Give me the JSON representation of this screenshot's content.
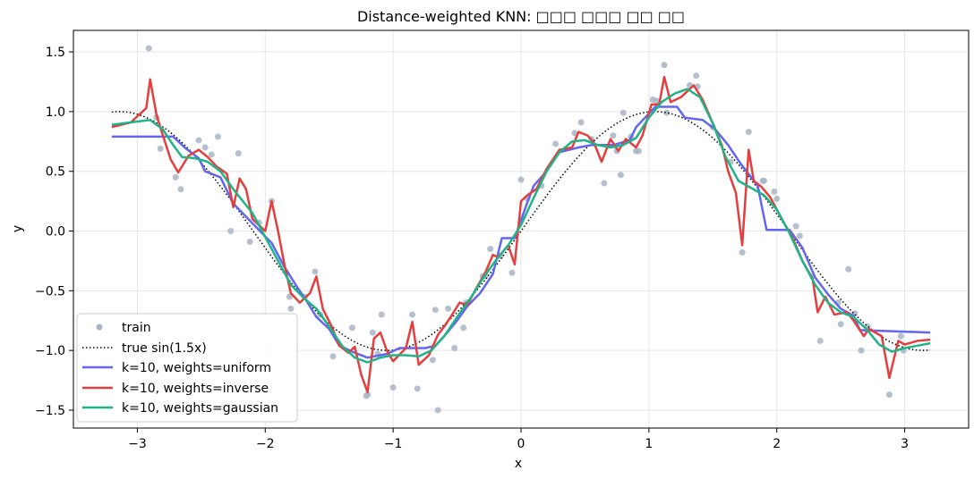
{
  "chart_data": {
    "type": "line",
    "title": "Distance-weighted KNN: □□□ □□□ □□ □□",
    "xlabel": "x",
    "ylabel": "y",
    "xlim": [
      -3.5,
      3.5
    ],
    "ylim": [
      -1.65,
      1.68
    ],
    "xticks": [
      -3,
      -2,
      -1,
      0,
      1,
      2,
      3
    ],
    "xtick_labels": [
      "−3",
      "−2",
      "−1",
      "0",
      "1",
      "2",
      "3"
    ],
    "yticks": [
      -1.5,
      -1.0,
      -0.5,
      0.0,
      0.5,
      1.0,
      1.5
    ],
    "ytick_labels": [
      "−1.5",
      "−1.0",
      "−0.5",
      "0.0",
      "0.5",
      "1.0",
      "1.5"
    ],
    "grid": true,
    "legend_position": "lower-left",
    "legend": {
      "train": "train",
      "truth": "true sin(1.5x)",
      "uniform": "k=10, weights=uniform",
      "inverse": "k=10, weights=inverse",
      "gaussian": "k=10, weights=gaussian"
    },
    "colors": {
      "train": "#a9b4c6",
      "truth": "#000000",
      "uniform": "#6366f1",
      "inverse": "#e53e3e",
      "gaussian": "#1fb488",
      "grid": "#e6e6e6"
    },
    "train_points": [
      [
        -2.91,
        1.53
      ],
      [
        -2.85,
        0.95
      ],
      [
        -2.82,
        0.69
      ],
      [
        -2.7,
        0.45
      ],
      [
        -2.66,
        0.35
      ],
      [
        -2.52,
        0.76
      ],
      [
        -2.47,
        0.7
      ],
      [
        -2.42,
        0.64
      ],
      [
        -2.37,
        0.79
      ],
      [
        -2.27,
        0.0
      ],
      [
        -2.21,
        0.65
      ],
      [
        -2.12,
        -0.09
      ],
      [
        -2.05,
        0.07
      ],
      [
        -1.95,
        0.25
      ],
      [
        -1.81,
        -0.55
      ],
      [
        -1.8,
        -0.65
      ],
      [
        -1.69,
        -0.55
      ],
      [
        -1.61,
        -0.34
      ],
      [
        -1.57,
        -0.7
      ],
      [
        -1.47,
        -1.05
      ],
      [
        -1.32,
        -0.81
      ],
      [
        -1.21,
        -1.38
      ],
      [
        -1.2,
        -1.37
      ],
      [
        -1.16,
        -0.85
      ],
      [
        -1.12,
        -1.03
      ],
      [
        -1.09,
        -0.7
      ],
      [
        -1.0,
        -1.31
      ],
      [
        -0.85,
        -0.7
      ],
      [
        -0.81,
        -1.32
      ],
      [
        -0.69,
        -1.08
      ],
      [
        -0.67,
        -0.66
      ],
      [
        -0.65,
        -1.5
      ],
      [
        -0.57,
        -0.65
      ],
      [
        -0.52,
        -0.98
      ],
      [
        -0.45,
        -0.81
      ],
      [
        -0.43,
        -0.6
      ],
      [
        -0.3,
        -0.38
      ],
      [
        -0.28,
        -0.38
      ],
      [
        -0.24,
        -0.15
      ],
      [
        -0.16,
        -0.21
      ],
      [
        -0.07,
        -0.35
      ],
      [
        0.0,
        0.43
      ],
      [
        0.05,
        0.27
      ],
      [
        0.16,
        0.38
      ],
      [
        0.27,
        0.73
      ],
      [
        0.42,
        0.82
      ],
      [
        0.47,
        0.91
      ],
      [
        0.55,
        0.77
      ],
      [
        0.65,
        0.4
      ],
      [
        0.72,
        0.8
      ],
      [
        0.75,
        0.67
      ],
      [
        0.78,
        0.47
      ],
      [
        0.8,
        0.99
      ],
      [
        0.86,
        0.79
      ],
      [
        0.9,
        0.67
      ],
      [
        0.92,
        0.67
      ],
      [
        1.03,
        1.1
      ],
      [
        1.06,
        1.09
      ],
      [
        1.12,
        1.39
      ],
      [
        1.14,
        0.99
      ],
      [
        1.32,
        1.22
      ],
      [
        1.37,
        1.3
      ],
      [
        1.38,
        1.21
      ],
      [
        1.5,
        0.87
      ],
      [
        1.64,
        0.58
      ],
      [
        1.73,
        -0.18
      ],
      [
        1.78,
        0.83
      ],
      [
        1.89,
        0.42
      ],
      [
        1.9,
        0.42
      ],
      [
        1.98,
        0.33
      ],
      [
        2.0,
        0.27
      ],
      [
        2.15,
        0.04
      ],
      [
        2.18,
        -0.04
      ],
      [
        2.28,
        -0.38
      ],
      [
        2.34,
        -0.92
      ],
      [
        2.48,
        -0.6
      ],
      [
        2.5,
        -0.78
      ],
      [
        2.56,
        -0.32
      ],
      [
        2.61,
        -0.69
      ],
      [
        2.66,
        -1.0
      ],
      [
        2.71,
        -0.8
      ],
      [
        2.88,
        -1.37
      ],
      [
        2.97,
        -0.88
      ],
      [
        2.99,
        -1.0
      ]
    ],
    "uniform_curve": [
      [
        -3.2,
        0.79
      ],
      [
        -2.72,
        0.79
      ],
      [
        -2.62,
        0.69
      ],
      [
        -2.52,
        0.61
      ],
      [
        -2.47,
        0.5
      ],
      [
        -2.35,
        0.45
      ],
      [
        -2.25,
        0.23
      ],
      [
        -2.15,
        0.12
      ],
      [
        -2.05,
        0.01
      ],
      [
        -1.95,
        -0.1
      ],
      [
        -1.85,
        -0.3
      ],
      [
        -1.75,
        -0.47
      ],
      [
        -1.68,
        -0.58
      ],
      [
        -1.6,
        -0.72
      ],
      [
        -1.5,
        -0.82
      ],
      [
        -1.42,
        -0.96
      ],
      [
        -1.3,
        -1.02
      ],
      [
        -1.2,
        -1.06
      ],
      [
        -1.05,
        -1.03
      ],
      [
        -0.95,
        -0.98
      ],
      [
        -0.75,
        -0.98
      ],
      [
        -0.67,
        -0.96
      ],
      [
        -0.6,
        -0.88
      ],
      [
        -0.5,
        -0.75
      ],
      [
        -0.42,
        -0.63
      ],
      [
        -0.32,
        -0.52
      ],
      [
        -0.22,
        -0.36
      ],
      [
        -0.15,
        -0.06
      ],
      [
        -0.05,
        -0.06
      ],
      [
        0.05,
        0.24
      ],
      [
        0.1,
        0.38
      ],
      [
        0.2,
        0.5
      ],
      [
        0.3,
        0.66
      ],
      [
        0.45,
        0.7
      ],
      [
        0.55,
        0.72
      ],
      [
        0.72,
        0.72
      ],
      [
        0.85,
        0.76
      ],
      [
        0.9,
        0.87
      ],
      [
        1.05,
        1.04
      ],
      [
        1.1,
        1.04
      ],
      [
        1.22,
        1.04
      ],
      [
        1.28,
        0.95
      ],
      [
        1.42,
        0.93
      ],
      [
        1.52,
        0.85
      ],
      [
        1.62,
        0.72
      ],
      [
        1.72,
        0.56
      ],
      [
        1.85,
        0.38
      ],
      [
        1.92,
        0.01
      ],
      [
        2.1,
        0.01
      ],
      [
        2.2,
        -0.14
      ],
      [
        2.3,
        -0.39
      ],
      [
        2.4,
        -0.53
      ],
      [
        2.5,
        -0.65
      ],
      [
        2.6,
        -0.71
      ],
      [
        2.65,
        -0.83
      ],
      [
        3.2,
        -0.85
      ]
    ],
    "inverse_curve": [
      [
        -3.2,
        0.87
      ],
      [
        -3.05,
        0.91
      ],
      [
        -2.98,
        0.98
      ],
      [
        -2.93,
        1.03
      ],
      [
        -2.9,
        1.27
      ],
      [
        -2.85,
        0.97
      ],
      [
        -2.8,
        0.8
      ],
      [
        -2.74,
        0.6
      ],
      [
        -2.68,
        0.49
      ],
      [
        -2.6,
        0.63
      ],
      [
        -2.52,
        0.68
      ],
      [
        -2.45,
        0.62
      ],
      [
        -2.38,
        0.54
      ],
      [
        -2.3,
        0.48
      ],
      [
        -2.25,
        0.2
      ],
      [
        -2.2,
        0.44
      ],
      [
        -2.15,
        0.35
      ],
      [
        -2.1,
        0.1
      ],
      [
        -2.05,
        0.05
      ],
      [
        -2.0,
        0.0
      ],
      [
        -1.95,
        0.25
      ],
      [
        -1.9,
        0.0
      ],
      [
        -1.85,
        -0.28
      ],
      [
        -1.8,
        -0.52
      ],
      [
        -1.73,
        -0.6
      ],
      [
        -1.65,
        -0.52
      ],
      [
        -1.6,
        -0.38
      ],
      [
        -1.55,
        -0.65
      ],
      [
        -1.48,
        -0.8
      ],
      [
        -1.42,
        -0.96
      ],
      [
        -1.35,
        -1.02
      ],
      [
        -1.3,
        -0.97
      ],
      [
        -1.25,
        -1.2
      ],
      [
        -1.2,
        -1.35
      ],
      [
        -1.15,
        -0.9
      ],
      [
        -1.1,
        -0.85
      ],
      [
        -1.05,
        -1.0
      ],
      [
        -1.0,
        -1.09
      ],
      [
        -0.9,
        -0.98
      ],
      [
        -0.85,
        -0.76
      ],
      [
        -0.8,
        -1.12
      ],
      [
        -0.72,
        -1.04
      ],
      [
        -0.65,
        -0.87
      ],
      [
        -0.6,
        -0.8
      ],
      [
        -0.55,
        -0.72
      ],
      [
        -0.48,
        -0.6
      ],
      [
        -0.42,
        -0.62
      ],
      [
        -0.35,
        -0.48
      ],
      [
        -0.28,
        -0.35
      ],
      [
        -0.22,
        -0.2
      ],
      [
        -0.18,
        -0.22
      ],
      [
        -0.1,
        -0.12
      ],
      [
        -0.05,
        -0.28
      ],
      [
        0.0,
        0.25
      ],
      [
        0.05,
        0.3
      ],
      [
        0.12,
        0.35
      ],
      [
        0.2,
        0.52
      ],
      [
        0.3,
        0.68
      ],
      [
        0.4,
        0.7
      ],
      [
        0.45,
        0.83
      ],
      [
        0.52,
        0.8
      ],
      [
        0.57,
        0.74
      ],
      [
        0.63,
        0.58
      ],
      [
        0.7,
        0.77
      ],
      [
        0.76,
        0.67
      ],
      [
        0.82,
        0.77
      ],
      [
        0.9,
        0.7
      ],
      [
        0.95,
        0.8
      ],
      [
        1.02,
        1.06
      ],
      [
        1.08,
        1.06
      ],
      [
        1.12,
        1.29
      ],
      [
        1.17,
        1.08
      ],
      [
        1.25,
        1.12
      ],
      [
        1.35,
        1.22
      ],
      [
        1.42,
        1.1
      ],
      [
        1.5,
        0.9
      ],
      [
        1.57,
        0.72
      ],
      [
        1.62,
        0.5
      ],
      [
        1.68,
        0.32
      ],
      [
        1.73,
        -0.12
      ],
      [
        1.78,
        0.68
      ],
      [
        1.82,
        0.42
      ],
      [
        1.88,
        0.37
      ],
      [
        1.95,
        0.28
      ],
      [
        2.05,
        0.08
      ],
      [
        2.12,
        -0.05
      ],
      [
        2.2,
        -0.25
      ],
      [
        2.28,
        -0.4
      ],
      [
        2.32,
        -0.68
      ],
      [
        2.38,
        -0.55
      ],
      [
        2.45,
        -0.7
      ],
      [
        2.55,
        -0.68
      ],
      [
        2.6,
        -0.75
      ],
      [
        2.68,
        -0.88
      ],
      [
        2.72,
        -0.82
      ],
      [
        2.82,
        -0.88
      ],
      [
        2.88,
        -1.23
      ],
      [
        2.95,
        -0.92
      ],
      [
        3.0,
        -0.95
      ],
      [
        3.1,
        -0.92
      ],
      [
        3.2,
        -0.91
      ]
    ],
    "gaussian_curve": [
      [
        -3.2,
        0.89
      ],
      [
        -3.05,
        0.91
      ],
      [
        -2.9,
        0.93
      ],
      [
        -2.8,
        0.85
      ],
      [
        -2.72,
        0.72
      ],
      [
        -2.65,
        0.62
      ],
      [
        -2.55,
        0.61
      ],
      [
        -2.45,
        0.58
      ],
      [
        -2.35,
        0.5
      ],
      [
        -2.25,
        0.35
      ],
      [
        -2.1,
        0.15
      ],
      [
        -2.0,
        -0.05
      ],
      [
        -1.9,
        -0.25
      ],
      [
        -1.8,
        -0.45
      ],
      [
        -1.7,
        -0.56
      ],
      [
        -1.6,
        -0.65
      ],
      [
        -1.5,
        -0.8
      ],
      [
        -1.4,
        -0.96
      ],
      [
        -1.3,
        -1.06
      ],
      [
        -1.2,
        -1.1
      ],
      [
        -1.1,
        -1.06
      ],
      [
        -1.0,
        -1.04
      ],
      [
        -0.9,
        -1.04
      ],
      [
        -0.8,
        -1.05
      ],
      [
        -0.7,
        -1.0
      ],
      [
        -0.6,
        -0.88
      ],
      [
        -0.5,
        -0.72
      ],
      [
        -0.4,
        -0.57
      ],
      [
        -0.3,
        -0.4
      ],
      [
        -0.2,
        -0.25
      ],
      [
        -0.1,
        -0.12
      ],
      [
        0.0,
        0.05
      ],
      [
        0.1,
        0.28
      ],
      [
        0.2,
        0.5
      ],
      [
        0.3,
        0.66
      ],
      [
        0.4,
        0.75
      ],
      [
        0.5,
        0.76
      ],
      [
        0.6,
        0.72
      ],
      [
        0.7,
        0.7
      ],
      [
        0.8,
        0.72
      ],
      [
        0.9,
        0.78
      ],
      [
        1.0,
        0.95
      ],
      [
        1.1,
        1.08
      ],
      [
        1.2,
        1.15
      ],
      [
        1.3,
        1.19
      ],
      [
        1.4,
        1.12
      ],
      [
        1.5,
        0.9
      ],
      [
        1.6,
        0.62
      ],
      [
        1.7,
        0.42
      ],
      [
        1.8,
        0.36
      ],
      [
        1.9,
        0.3
      ],
      [
        2.0,
        0.18
      ],
      [
        2.1,
        -0.02
      ],
      [
        2.2,
        -0.25
      ],
      [
        2.3,
        -0.45
      ],
      [
        2.4,
        -0.6
      ],
      [
        2.5,
        -0.68
      ],
      [
        2.6,
        -0.72
      ],
      [
        2.7,
        -0.82
      ],
      [
        2.8,
        -0.95
      ],
      [
        2.9,
        -1.01
      ],
      [
        3.0,
        -0.98
      ],
      [
        3.1,
        -0.96
      ],
      [
        3.2,
        -0.94
      ]
    ],
    "truth_function": "sin(1.5x)",
    "truth_range": [
      -3.2,
      3.2
    ]
  }
}
